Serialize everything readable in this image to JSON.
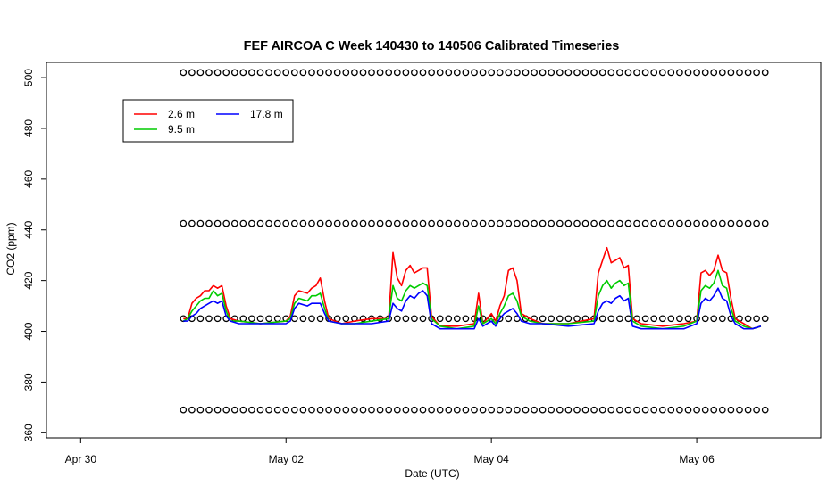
{
  "chart_data": {
    "type": "line",
    "title": "FEF AIRCOA C  Week 140430 to 140506  Calibrated Timeseries",
    "xlabel": "Date (UTC)",
    "ylabel": "CO2 (ppm)",
    "xlim": [
      "2014-04-29T16:00",
      "2014-05-07T05:00"
    ],
    "ylim": [
      358,
      506
    ],
    "x_ticks": [
      {
        "label": "Apr 30",
        "x": "2014-04-30T00:00"
      },
      {
        "label": "May 02",
        "x": "2014-05-02T00:00"
      },
      {
        "label": "May 04",
        "x": "2014-05-04T00:00"
      },
      {
        "label": "May 06",
        "x": "2014-05-06T00:00"
      }
    ],
    "y_ticks": [
      360,
      380,
      400,
      420,
      440,
      460,
      480,
      500
    ],
    "legend": {
      "placement": "top-left",
      "entries": [
        {
          "label": "2.6 m",
          "color": "#ff0000"
        },
        {
          "label": "9.5 m",
          "color": "#00cc00"
        },
        {
          "label": "17.8 m",
          "color": "#0000ff"
        }
      ]
    },
    "series": [
      {
        "name": "2.6 m",
        "color": "#ff0000",
        "points": [
          [
            "2014-05-01T00:00",
            405
          ],
          [
            "2014-05-01T01:00",
            405
          ],
          [
            "2014-05-01T02:00",
            411
          ],
          [
            "2014-05-01T03:00",
            413
          ],
          [
            "2014-05-01T04:00",
            414
          ],
          [
            "2014-05-01T05:00",
            416
          ],
          [
            "2014-05-01T06:00",
            416
          ],
          [
            "2014-05-01T07:00",
            418
          ],
          [
            "2014-05-01T08:00",
            417
          ],
          [
            "2014-05-01T09:00",
            418
          ],
          [
            "2014-05-01T10:00",
            410
          ],
          [
            "2014-05-01T11:00",
            405
          ],
          [
            "2014-05-01T13:00",
            404
          ],
          [
            "2014-05-01T18:00",
            403
          ],
          [
            "2014-05-02T00:00",
            404
          ],
          [
            "2014-05-02T01:00",
            406
          ],
          [
            "2014-05-02T02:00",
            414
          ],
          [
            "2014-05-02T03:00",
            416
          ],
          [
            "2014-05-02T05:00",
            415
          ],
          [
            "2014-05-02T06:00",
            417
          ],
          [
            "2014-05-02T07:00",
            418
          ],
          [
            "2014-05-02T08:00",
            421
          ],
          [
            "2014-05-02T09:00",
            412
          ],
          [
            "2014-05-02T10:00",
            405
          ],
          [
            "2014-05-02T13:00",
            403
          ],
          [
            "2014-05-02T16:00",
            404
          ],
          [
            "2014-05-02T20:00",
            405
          ],
          [
            "2014-05-03T00:00",
            405
          ],
          [
            "2014-05-03T01:00",
            431
          ],
          [
            "2014-05-03T02:00",
            421
          ],
          [
            "2014-05-03T03:00",
            418
          ],
          [
            "2014-05-03T04:00",
            424
          ],
          [
            "2014-05-03T05:00",
            426
          ],
          [
            "2014-05-03T06:00",
            423
          ],
          [
            "2014-05-03T07:00",
            424
          ],
          [
            "2014-05-03T08:00",
            425
          ],
          [
            "2014-05-03T09:00",
            425
          ],
          [
            "2014-05-03T10:00",
            406
          ],
          [
            "2014-05-03T12:00",
            402
          ],
          [
            "2014-05-03T16:00",
            402
          ],
          [
            "2014-05-03T20:00",
            403
          ],
          [
            "2014-05-03T21:00",
            415
          ],
          [
            "2014-05-03T22:00",
            403
          ],
          [
            "2014-05-04T00:00",
            407
          ],
          [
            "2014-05-04T01:00",
            404
          ],
          [
            "2014-05-04T02:00",
            410
          ],
          [
            "2014-05-04T03:00",
            414
          ],
          [
            "2014-05-04T04:00",
            424
          ],
          [
            "2014-05-04T05:00",
            425
          ],
          [
            "2014-05-04T06:00",
            420
          ],
          [
            "2014-05-04T07:00",
            407
          ],
          [
            "2014-05-04T09:00",
            405
          ],
          [
            "2014-05-04T12:00",
            403
          ],
          [
            "2014-05-04T18:00",
            403
          ],
          [
            "2014-05-05T00:00",
            405
          ],
          [
            "2014-05-05T01:00",
            423
          ],
          [
            "2014-05-05T02:00",
            428
          ],
          [
            "2014-05-05T03:00",
            433
          ],
          [
            "2014-05-05T04:00",
            427
          ],
          [
            "2014-05-05T05:00",
            428
          ],
          [
            "2014-05-05T06:00",
            429
          ],
          [
            "2014-05-05T07:00",
            425
          ],
          [
            "2014-05-05T08:00",
            426
          ],
          [
            "2014-05-05T09:00",
            405
          ],
          [
            "2014-05-05T11:00",
            403
          ],
          [
            "2014-05-05T16:00",
            402
          ],
          [
            "2014-05-05T21:00",
            403
          ],
          [
            "2014-05-06T00:00",
            404
          ],
          [
            "2014-05-06T01:00",
            423
          ],
          [
            "2014-05-06T02:00",
            424
          ],
          [
            "2014-05-06T03:00",
            422
          ],
          [
            "2014-05-06T04:00",
            424
          ],
          [
            "2014-05-06T05:00",
            430
          ],
          [
            "2014-05-06T06:00",
            424
          ],
          [
            "2014-05-06T07:00",
            423
          ],
          [
            "2014-05-06T08:00",
            413
          ],
          [
            "2014-05-06T09:00",
            405
          ],
          [
            "2014-05-06T11:00",
            403
          ],
          [
            "2014-05-06T13:00",
            401
          ],
          [
            "2014-05-06T15:00",
            402
          ]
        ]
      },
      {
        "name": "9.5 m",
        "color": "#00cc00",
        "points": [
          [
            "2014-05-01T00:00",
            404
          ],
          [
            "2014-05-01T01:00",
            405
          ],
          [
            "2014-05-01T02:00",
            408
          ],
          [
            "2014-05-01T03:00",
            410
          ],
          [
            "2014-05-01T04:00",
            412
          ],
          [
            "2014-05-01T05:00",
            413
          ],
          [
            "2014-05-01T06:00",
            413
          ],
          [
            "2014-05-01T07:00",
            416
          ],
          [
            "2014-05-01T08:00",
            414
          ],
          [
            "2014-05-01T09:00",
            415
          ],
          [
            "2014-05-01T10:00",
            408
          ],
          [
            "2014-05-01T11:00",
            404
          ],
          [
            "2014-05-01T13:00",
            404
          ],
          [
            "2014-05-01T18:00",
            403
          ],
          [
            "2014-05-02T00:00",
            404
          ],
          [
            "2014-05-02T01:00",
            405
          ],
          [
            "2014-05-02T02:00",
            411
          ],
          [
            "2014-05-02T03:00",
            413
          ],
          [
            "2014-05-02T05:00",
            412
          ],
          [
            "2014-05-02T06:00",
            414
          ],
          [
            "2014-05-02T07:00",
            414
          ],
          [
            "2014-05-02T08:00",
            415
          ],
          [
            "2014-05-02T09:00",
            409
          ],
          [
            "2014-05-02T10:00",
            404
          ],
          [
            "2014-05-02T13:00",
            403
          ],
          [
            "2014-05-02T16:00",
            403
          ],
          [
            "2014-05-02T20:00",
            404
          ],
          [
            "2014-05-03T00:00",
            405
          ],
          [
            "2014-05-03T01:00",
            418
          ],
          [
            "2014-05-03T02:00",
            413
          ],
          [
            "2014-05-03T03:00",
            412
          ],
          [
            "2014-05-03T04:00",
            416
          ],
          [
            "2014-05-03T05:00",
            418
          ],
          [
            "2014-05-03T06:00",
            417
          ],
          [
            "2014-05-03T07:00",
            418
          ],
          [
            "2014-05-03T08:00",
            419
          ],
          [
            "2014-05-03T09:00",
            418
          ],
          [
            "2014-05-03T10:00",
            405
          ],
          [
            "2014-05-03T12:00",
            402
          ],
          [
            "2014-05-03T16:00",
            401
          ],
          [
            "2014-05-03T20:00",
            402
          ],
          [
            "2014-05-03T21:00",
            410
          ],
          [
            "2014-05-03T22:00",
            403
          ],
          [
            "2014-05-04T00:00",
            405
          ],
          [
            "2014-05-04T01:00",
            403
          ],
          [
            "2014-05-04T02:00",
            407
          ],
          [
            "2014-05-04T03:00",
            410
          ],
          [
            "2014-05-04T04:00",
            414
          ],
          [
            "2014-05-04T05:00",
            415
          ],
          [
            "2014-05-04T06:00",
            412
          ],
          [
            "2014-05-04T07:00",
            406
          ],
          [
            "2014-05-04T09:00",
            404
          ],
          [
            "2014-05-04T12:00",
            403
          ],
          [
            "2014-05-04T18:00",
            403
          ],
          [
            "2014-05-05T00:00",
            404
          ],
          [
            "2014-05-05T01:00",
            414
          ],
          [
            "2014-05-05T02:00",
            418
          ],
          [
            "2014-05-05T03:00",
            420
          ],
          [
            "2014-05-05T04:00",
            417
          ],
          [
            "2014-05-05T05:00",
            419
          ],
          [
            "2014-05-05T06:00",
            420
          ],
          [
            "2014-05-05T07:00",
            418
          ],
          [
            "2014-05-05T08:00",
            419
          ],
          [
            "2014-05-05T09:00",
            404
          ],
          [
            "2014-05-05T11:00",
            402
          ],
          [
            "2014-05-05T16:00",
            401
          ],
          [
            "2014-05-05T21:00",
            402
          ],
          [
            "2014-05-06T00:00",
            404
          ],
          [
            "2014-05-06T01:00",
            416
          ],
          [
            "2014-05-06T02:00",
            418
          ],
          [
            "2014-05-06T03:00",
            417
          ],
          [
            "2014-05-06T04:00",
            419
          ],
          [
            "2014-05-06T05:00",
            424
          ],
          [
            "2014-05-06T06:00",
            418
          ],
          [
            "2014-05-06T07:00",
            417
          ],
          [
            "2014-05-06T08:00",
            409
          ],
          [
            "2014-05-06T09:00",
            404
          ],
          [
            "2014-05-06T11:00",
            402
          ],
          [
            "2014-05-06T13:00",
            401
          ],
          [
            "2014-05-06T15:00",
            402
          ]
        ]
      },
      {
        "name": "17.8 m",
        "color": "#0000ff",
        "points": [
          [
            "2014-05-01T00:00",
            404
          ],
          [
            "2014-05-01T01:00",
            404
          ],
          [
            "2014-05-01T02:00",
            406
          ],
          [
            "2014-05-01T03:00",
            407
          ],
          [
            "2014-05-01T04:00",
            409
          ],
          [
            "2014-05-01T05:00",
            410
          ],
          [
            "2014-05-01T06:00",
            411
          ],
          [
            "2014-05-01T07:00",
            412
          ],
          [
            "2014-05-01T08:00",
            411
          ],
          [
            "2014-05-01T09:00",
            412
          ],
          [
            "2014-05-01T10:00",
            406
          ],
          [
            "2014-05-01T11:00",
            404
          ],
          [
            "2014-05-01T13:00",
            403
          ],
          [
            "2014-05-01T18:00",
            403
          ],
          [
            "2014-05-02T00:00",
            403
          ],
          [
            "2014-05-02T01:00",
            404
          ],
          [
            "2014-05-02T02:00",
            409
          ],
          [
            "2014-05-02T03:00",
            411
          ],
          [
            "2014-05-02T05:00",
            410
          ],
          [
            "2014-05-02T06:00",
            411
          ],
          [
            "2014-05-02T07:00",
            411
          ],
          [
            "2014-05-02T08:00",
            411
          ],
          [
            "2014-05-02T09:00",
            407
          ],
          [
            "2014-05-02T10:00",
            404
          ],
          [
            "2014-05-02T13:00",
            403
          ],
          [
            "2014-05-02T16:00",
            403
          ],
          [
            "2014-05-02T20:00",
            403
          ],
          [
            "2014-05-03T00:00",
            404
          ],
          [
            "2014-05-03T01:00",
            411
          ],
          [
            "2014-05-03T02:00",
            409
          ],
          [
            "2014-05-03T03:00",
            408
          ],
          [
            "2014-05-03T04:00",
            412
          ],
          [
            "2014-05-03T05:00",
            414
          ],
          [
            "2014-05-03T06:00",
            413
          ],
          [
            "2014-05-03T07:00",
            415
          ],
          [
            "2014-05-03T08:00",
            416
          ],
          [
            "2014-05-03T09:00",
            414
          ],
          [
            "2014-05-03T10:00",
            403
          ],
          [
            "2014-05-03T12:00",
            401
          ],
          [
            "2014-05-03T16:00",
            401
          ],
          [
            "2014-05-03T20:00",
            401
          ],
          [
            "2014-05-03T21:00",
            405
          ],
          [
            "2014-05-03T22:00",
            402
          ],
          [
            "2014-05-04T00:00",
            404
          ],
          [
            "2014-05-04T01:00",
            402
          ],
          [
            "2014-05-04T02:00",
            405
          ],
          [
            "2014-05-04T03:00",
            407
          ],
          [
            "2014-05-04T04:00",
            408
          ],
          [
            "2014-05-04T05:00",
            409
          ],
          [
            "2014-05-04T06:00",
            407
          ],
          [
            "2014-05-04T07:00",
            404
          ],
          [
            "2014-05-04T09:00",
            403
          ],
          [
            "2014-05-04T12:00",
            403
          ],
          [
            "2014-05-04T18:00",
            402
          ],
          [
            "2014-05-05T00:00",
            403
          ],
          [
            "2014-05-05T01:00",
            408
          ],
          [
            "2014-05-05T02:00",
            411
          ],
          [
            "2014-05-05T03:00",
            412
          ],
          [
            "2014-05-05T04:00",
            411
          ],
          [
            "2014-05-05T05:00",
            413
          ],
          [
            "2014-05-05T06:00",
            414
          ],
          [
            "2014-05-05T07:00",
            412
          ],
          [
            "2014-05-05T08:00",
            413
          ],
          [
            "2014-05-05T09:00",
            402
          ],
          [
            "2014-05-05T11:00",
            401
          ],
          [
            "2014-05-05T16:00",
            401
          ],
          [
            "2014-05-05T21:00",
            401
          ],
          [
            "2014-05-06T00:00",
            403
          ],
          [
            "2014-05-06T01:00",
            411
          ],
          [
            "2014-05-06T02:00",
            413
          ],
          [
            "2014-05-06T03:00",
            412
          ],
          [
            "2014-05-06T04:00",
            414
          ],
          [
            "2014-05-06T05:00",
            417
          ],
          [
            "2014-05-06T06:00",
            413
          ],
          [
            "2014-05-06T07:00",
            412
          ],
          [
            "2014-05-06T08:00",
            406
          ],
          [
            "2014-05-06T09:00",
            403
          ],
          [
            "2014-05-06T11:00",
            401
          ],
          [
            "2014-05-06T13:00",
            401
          ],
          [
            "2014-05-06T15:00",
            402
          ]
        ]
      },
      {
        "name": "",
        "marker": "circle",
        "color": "#000000",
        "description_levels_ppm": [
          502,
          442.5,
          405,
          369
        ],
        "x_start": "2014-05-01T00:00",
        "x_end": "2014-05-06T17:00",
        "interval_hours": 2
      }
    ]
  }
}
